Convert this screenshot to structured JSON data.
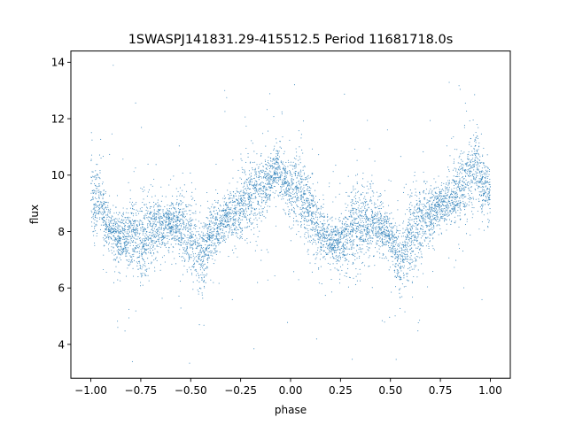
{
  "chart_data": {
    "type": "scatter",
    "title": "1SWASPJ141831.29-415512.5 Period 11681718.0s",
    "xlabel": "phase",
    "ylabel": "flux",
    "xlim": [
      -1.1,
      1.1
    ],
    "ylim": [
      2.8,
      14.4
    ],
    "xticks": [
      -1.0,
      -0.75,
      -0.5,
      -0.25,
      0.0,
      0.25,
      0.5,
      0.75,
      1.0
    ],
    "xtick_labels": [
      "−1.00",
      "−0.75",
      "−0.50",
      "−0.25",
      "0.00",
      "0.25",
      "0.50",
      "0.75",
      "1.00"
    ],
    "yticks": [
      4,
      6,
      8,
      10,
      12,
      14
    ],
    "ytick_labels": [
      "4",
      "6",
      "8",
      "10",
      "12",
      "14"
    ],
    "grid": false,
    "point_color": "#1f77b4",
    "series": [
      {
        "profile": [
          {
            "x": -1.0,
            "y": 9.3
          },
          {
            "x": -0.95,
            "y": 9.0
          },
          {
            "x": -0.9,
            "y": 8.1
          },
          {
            "x": -0.85,
            "y": 7.7
          },
          {
            "x": -0.8,
            "y": 8.0
          },
          {
            "x": -0.75,
            "y": 7.4
          },
          {
            "x": -0.7,
            "y": 8.1
          },
          {
            "x": -0.65,
            "y": 8.2
          },
          {
            "x": -0.6,
            "y": 8.3
          },
          {
            "x": -0.55,
            "y": 8.2
          },
          {
            "x": -0.5,
            "y": 7.9
          },
          {
            "x": -0.45,
            "y": 6.9
          },
          {
            "x": -0.4,
            "y": 7.9
          },
          {
            "x": -0.35,
            "y": 8.3
          },
          {
            "x": -0.3,
            "y": 8.6
          },
          {
            "x": -0.25,
            "y": 8.8
          },
          {
            "x": -0.2,
            "y": 9.3
          },
          {
            "x": -0.15,
            "y": 9.5
          },
          {
            "x": -0.1,
            "y": 9.9
          },
          {
            "x": -0.07,
            "y": 10.5
          },
          {
            "x": -0.05,
            "y": 9.9
          },
          {
            "x": 0.0,
            "y": 9.5
          },
          {
            "x": 0.05,
            "y": 9.4
          },
          {
            "x": 0.1,
            "y": 8.6
          },
          {
            "x": 0.15,
            "y": 8.0
          },
          {
            "x": 0.2,
            "y": 7.7
          },
          {
            "x": 0.25,
            "y": 7.5
          },
          {
            "x": 0.3,
            "y": 8.0
          },
          {
            "x": 0.35,
            "y": 8.2
          },
          {
            "x": 0.4,
            "y": 8.3
          },
          {
            "x": 0.45,
            "y": 8.2
          },
          {
            "x": 0.5,
            "y": 7.8
          },
          {
            "x": 0.55,
            "y": 6.9
          },
          {
            "x": 0.6,
            "y": 7.9
          },
          {
            "x": 0.65,
            "y": 8.3
          },
          {
            "x": 0.7,
            "y": 8.6
          },
          {
            "x": 0.75,
            "y": 8.9
          },
          {
            "x": 0.8,
            "y": 9.2
          },
          {
            "x": 0.85,
            "y": 9.4
          },
          {
            "x": 0.9,
            "y": 9.9
          },
          {
            "x": 0.93,
            "y": 10.5
          },
          {
            "x": 0.95,
            "y": 9.8
          },
          {
            "x": 1.0,
            "y": 9.3
          }
        ]
      }
    ]
  }
}
